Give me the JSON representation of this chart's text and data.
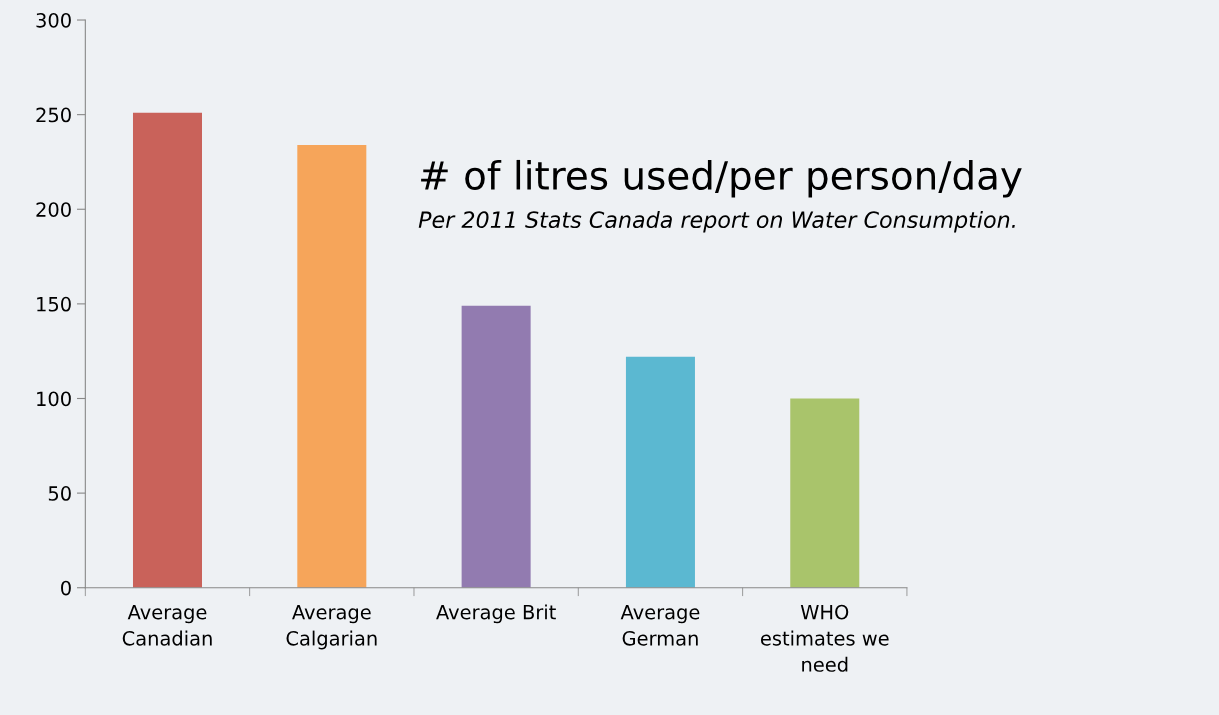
{
  "chart_data": {
    "type": "bar",
    "title": "# of litres used/per person/day",
    "subtitle": "Per 2011 Stats Canada report on Water Consumption.",
    "categories": [
      "Average\nCanadian",
      "Average\nCalgarian",
      "Average Brit",
      "Average\nGerman",
      "WHO\nestimates we\nneed"
    ],
    "values": [
      251,
      234,
      149,
      122,
      100
    ],
    "colors": [
      "#c9625a",
      "#f6a55a",
      "#927bb0",
      "#5bb8d1",
      "#a9c46b"
    ],
    "ylim": [
      0,
      300
    ],
    "yticks": [
      0,
      50,
      100,
      150,
      200,
      250,
      300
    ],
    "grid": false,
    "legend": false
  }
}
